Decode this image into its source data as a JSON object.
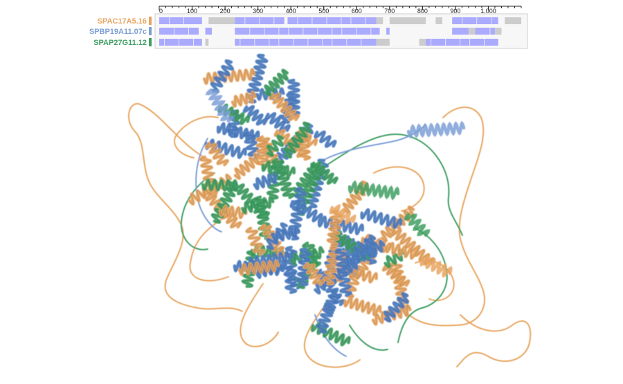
{
  "colors": {
    "orange": "#e8a561",
    "blue": "#7d9fd6",
    "green": "#3f9f63",
    "aligned": "#aaaaff",
    "unaligned": "#cccccc"
  },
  "alignment": {
    "axis": {
      "min": 0,
      "max": 1100,
      "ticks": [
        {
          "value": 0,
          "label": "0"
        },
        {
          "value": 100,
          "label": "100"
        },
        {
          "value": 200,
          "label": "200"
        },
        {
          "value": 300,
          "label": "300"
        },
        {
          "value": 400,
          "label": "400"
        },
        {
          "value": 500,
          "label": "500"
        },
        {
          "value": 600,
          "label": "600"
        },
        {
          "value": 700,
          "label": "700"
        },
        {
          "value": 800,
          "label": "800"
        },
        {
          "value": 900,
          "label": "900"
        },
        {
          "value": 1000,
          "label": "1,000"
        }
      ],
      "minor_step": 20
    },
    "tracks": [
      {
        "label": "SPAC17A5.16",
        "color": "#e8a561",
        "segments": [
          {
            "start": 0,
            "end": 130,
            "kind": "aligned"
          },
          {
            "start": 150,
            "end": 230,
            "kind": "gap"
          },
          {
            "start": 230,
            "end": 380,
            "kind": "aligned"
          },
          {
            "start": 390,
            "end": 660,
            "kind": "aligned"
          },
          {
            "start": 660,
            "end": 680,
            "kind": "gap"
          },
          {
            "start": 700,
            "end": 810,
            "kind": "gap"
          },
          {
            "start": 840,
            "end": 860,
            "kind": "gap"
          },
          {
            "start": 890,
            "end": 1030,
            "kind": "aligned"
          },
          {
            "start": 1050,
            "end": 1100,
            "kind": "gap"
          }
        ]
      },
      {
        "label": "SPBP19A11.07c",
        "color": "#7d9fd6",
        "segments": [
          {
            "start": 0,
            "end": 120,
            "kind": "aligned"
          },
          {
            "start": 140,
            "end": 160,
            "kind": "aligned"
          },
          {
            "start": 230,
            "end": 670,
            "kind": "aligned"
          },
          {
            "start": 690,
            "end": 700,
            "kind": "aligned"
          },
          {
            "start": 890,
            "end": 940,
            "kind": "aligned"
          },
          {
            "start": 940,
            "end": 960,
            "kind": "gap"
          },
          {
            "start": 960,
            "end": 1020,
            "kind": "aligned"
          },
          {
            "start": 1020,
            "end": 1040,
            "kind": "gap"
          }
        ]
      },
      {
        "label": "SPAP27G11.12",
        "color": "#3f9f63",
        "segments": [
          {
            "start": 0,
            "end": 130,
            "kind": "aligned"
          },
          {
            "start": 140,
            "end": 150,
            "kind": "gap"
          },
          {
            "start": 230,
            "end": 660,
            "kind": "aligned"
          },
          {
            "start": 660,
            "end": 700,
            "kind": "gap"
          },
          {
            "start": 790,
            "end": 810,
            "kind": "gap"
          },
          {
            "start": 810,
            "end": 1030,
            "kind": "aligned"
          }
        ]
      }
    ]
  }
}
